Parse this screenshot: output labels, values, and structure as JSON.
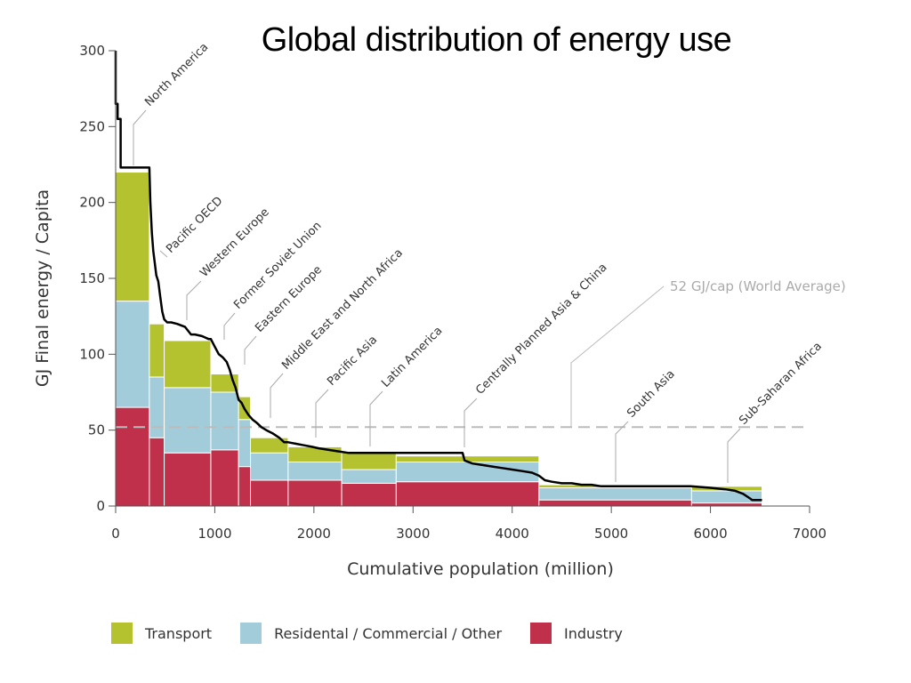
{
  "title": "Global distribution of energy use",
  "colors": {
    "transport": "#b5c22f",
    "residential": "#a3ccda",
    "industry": "#c0304a",
    "envelope": "#000000",
    "average": "#bbbbbb"
  },
  "legend": [
    {
      "label": "Transport",
      "color": "#b5c22f"
    },
    {
      "label": "Residental / Commercial / Other",
      "color": "#a3ccda"
    },
    {
      "label": "Industry",
      "color": "#c0304a"
    }
  ],
  "chart_data": {
    "type": "bar",
    "title": "Global distribution of energy use",
    "xlabel": "Cumulative population (million)",
    "ylabel": "GJ Final energy / Capita",
    "xlim": [
      0,
      7000
    ],
    "ylim": [
      0,
      300
    ],
    "xticks": [
      0,
      1000,
      2000,
      3000,
      4000,
      5000,
      6000,
      7000
    ],
    "yticks": [
      0,
      50,
      100,
      150,
      200,
      250,
      300
    ],
    "grid": false,
    "legend_position": "bottom",
    "series_names": [
      "Industry",
      "Residental / Commercial / Other",
      "Transport"
    ],
    "regions": [
      {
        "name": "North America",
        "x0": 0,
        "x1": 340,
        "industry": 65,
        "residential": 70,
        "transport": 85
      },
      {
        "name": "Pacific OECD",
        "x0": 340,
        "x1": 490,
        "industry": 45,
        "residential": 40,
        "transport": 35
      },
      {
        "name": "Western Europe",
        "x0": 490,
        "x1": 960,
        "industry": 35,
        "residential": 43,
        "transport": 31
      },
      {
        "name": "Former Soviet Union",
        "x0": 960,
        "x1": 1240,
        "industry": 37,
        "residential": 38,
        "transport": 12
      },
      {
        "name": "Eastern Europe",
        "x0": 1240,
        "x1": 1360,
        "industry": 26,
        "residential": 31,
        "transport": 15
      },
      {
        "name": "Middle East and North Africa",
        "x0": 1360,
        "x1": 1740,
        "industry": 17,
        "residential": 18,
        "transport": 10
      },
      {
        "name": "Pacific Asia",
        "x0": 1740,
        "x1": 2280,
        "industry": 17,
        "residential": 12,
        "transport": 10
      },
      {
        "name": "Latin America",
        "x0": 2280,
        "x1": 2830,
        "industry": 15,
        "residential": 9,
        "transport": 12
      },
      {
        "name": "Centrally Planned Asia & China",
        "x0": 2830,
        "x1": 4270,
        "industry": 16,
        "residential": 13,
        "transport": 4
      },
      {
        "name": "South Asia",
        "x0": 4270,
        "x1": 5810,
        "industry": 4,
        "residential": 8,
        "transport": 2
      },
      {
        "name": "Sub-Saharan Africa",
        "x0": 5810,
        "x1": 6520,
        "industry": 2,
        "residential": 8,
        "transport": 3
      }
    ],
    "envelope": {
      "x": [
        0,
        0,
        20,
        20,
        50,
        50,
        340,
        350,
        365,
        380,
        395,
        410,
        430,
        450,
        470,
        490,
        520,
        560,
        620,
        700,
        760,
        800,
        870,
        940,
        960,
        1000,
        1040,
        1080,
        1120,
        1150,
        1180,
        1210,
        1240,
        1270,
        1300,
        1340,
        1380,
        1420,
        1470,
        1520,
        1580,
        1650,
        1700,
        1740,
        1820,
        1900,
        1980,
        2050,
        2150,
        2250,
        2350,
        2500,
        2700,
        2900,
        3100,
        3300,
        3500,
        3520,
        3600,
        3700,
        3800,
        3900,
        4000,
        4100,
        4200,
        4270,
        4330,
        4400,
        4500,
        4600,
        4700,
        4800,
        4900,
        5000,
        5200,
        5400,
        5600,
        5800,
        6000,
        6150,
        6250,
        6330,
        6400,
        6420,
        6520
      ],
      "y": [
        300,
        265,
        265,
        255,
        255,
        223,
        223,
        200,
        180,
        168,
        160,
        152,
        148,
        138,
        128,
        123,
        121,
        121,
        120,
        118,
        113,
        113,
        112,
        110,
        110,
        105,
        100,
        98,
        95,
        90,
        83,
        78,
        70,
        68,
        64,
        60,
        57,
        55,
        52,
        50,
        48,
        45,
        42,
        42,
        41,
        40,
        39,
        38,
        37,
        36,
        35,
        35,
        35,
        35,
        35,
        35,
        35,
        30,
        28,
        27,
        26,
        25,
        24,
        23,
        22,
        20,
        17,
        16,
        15,
        15,
        14,
        14,
        13,
        13,
        13,
        13,
        13,
        13,
        12,
        11,
        10,
        8,
        5,
        4,
        4
      ]
    },
    "average": {
      "value": 52,
      "label": "52 GJ/cap (World Average)",
      "x0": 0,
      "x1": 6950
    }
  },
  "axes": {
    "xlabel": "Cumulative population (million)",
    "ylabel": "GJ Final energy / Capita"
  }
}
